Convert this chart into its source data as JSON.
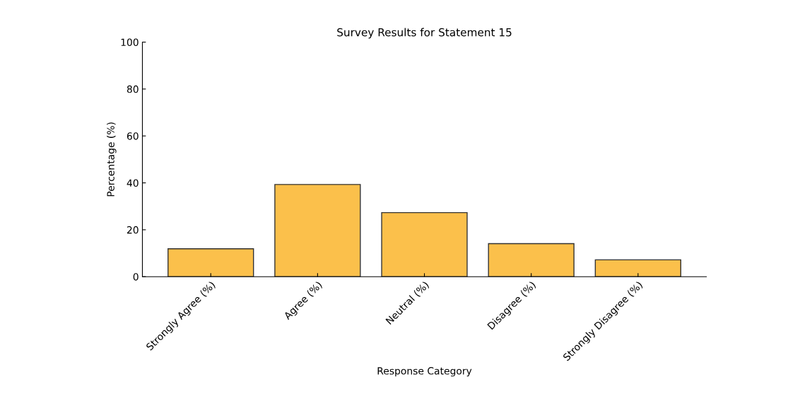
{
  "chart_data": {
    "type": "bar",
    "title": "Survey Results for Statement 15",
    "xlabel": "Response Category",
    "ylabel": "Percentage (%)",
    "categories": [
      "Strongly Agree (%)",
      "Agree (%)",
      "Neutral (%)",
      "Disagree (%)",
      "Strongly Disagree (%)"
    ],
    "values": [
      11.9,
      39.3,
      27.3,
      14.1,
      7.2
    ],
    "color": "#fbc04b",
    "ylim": [
      0,
      100
    ],
    "yticks": [
      0,
      20,
      40,
      60,
      80,
      100
    ],
    "grid": false
  }
}
